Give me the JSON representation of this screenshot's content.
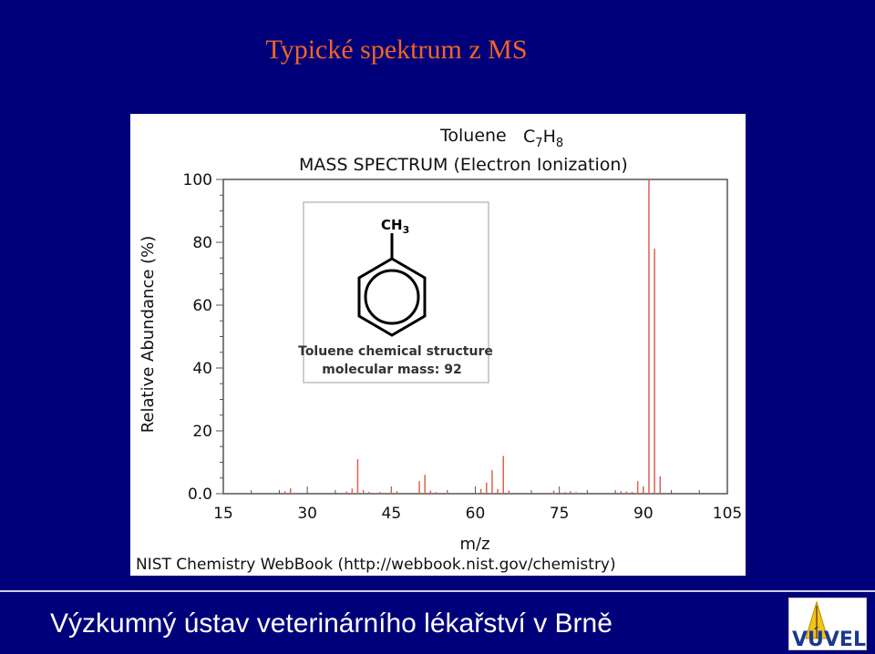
{
  "slide": {
    "title": "Typické spektrum z MS",
    "footer": "Výzkumný ústav veterinárního lékařství v Brně",
    "logo_text": "VÚVEL"
  },
  "chart_data": {
    "type": "bar",
    "title_compound": "Toluene",
    "formula": {
      "c": "C",
      "c_n": "7",
      "h": "H",
      "h_n": "8"
    },
    "subtitle": "MASS SPECTRUM (Electron Ionization)",
    "xlabel": "m/z",
    "ylabel": "Relative Abundance (%)",
    "xlim": [
      15,
      105
    ],
    "ylim": [
      0,
      100
    ],
    "x_ticks": [
      "15",
      "30",
      "45",
      "60",
      "75",
      "90",
      "105"
    ],
    "y_ticks": [
      "0.0",
      "20",
      "40",
      "60",
      "80",
      "100"
    ],
    "source": "NIST Chemistry WebBook (http://webbook.nist.gov/chemistry)",
    "structure": {
      "group_label": "CH",
      "group_sub": "3",
      "caption_line1": "Toluene chemical structure",
      "caption_line2": "molecular mass: 92"
    },
    "peaks": [
      {
        "mz": 26,
        "value": 0.8
      },
      {
        "mz": 27,
        "value": 1.7
      },
      {
        "mz": 37,
        "value": 0.7
      },
      {
        "mz": 38,
        "value": 1.6
      },
      {
        "mz": 39,
        "value": 11.0
      },
      {
        "mz": 40,
        "value": 1.0
      },
      {
        "mz": 41,
        "value": 0.6
      },
      {
        "mz": 43,
        "value": 0.5
      },
      {
        "mz": 45,
        "value": 1.2
      },
      {
        "mz": 46,
        "value": 0.8
      },
      {
        "mz": 50,
        "value": 4.0
      },
      {
        "mz": 51,
        "value": 6.0
      },
      {
        "mz": 52,
        "value": 1.0
      },
      {
        "mz": 53,
        "value": 0.5
      },
      {
        "mz": 55,
        "value": 0.4
      },
      {
        "mz": 61,
        "value": 1.5
      },
      {
        "mz": 62,
        "value": 3.5
      },
      {
        "mz": 63,
        "value": 7.5
      },
      {
        "mz": 64,
        "value": 1.5
      },
      {
        "mz": 65,
        "value": 12.0
      },
      {
        "mz": 66,
        "value": 1.0
      },
      {
        "mz": 74,
        "value": 1.0
      },
      {
        "mz": 76,
        "value": 0.5
      },
      {
        "mz": 77,
        "value": 0.8
      },
      {
        "mz": 78,
        "value": 0.5
      },
      {
        "mz": 86,
        "value": 0.8
      },
      {
        "mz": 87,
        "value": 0.7
      },
      {
        "mz": 88,
        "value": 0.6
      },
      {
        "mz": 89,
        "value": 4.0
      },
      {
        "mz": 90,
        "value": 2.0
      },
      {
        "mz": 91,
        "value": 100.0
      },
      {
        "mz": 92,
        "value": 78.0
      },
      {
        "mz": 93,
        "value": 5.5
      }
    ],
    "bar_color": "#e06050",
    "frame_color": "#555555"
  }
}
